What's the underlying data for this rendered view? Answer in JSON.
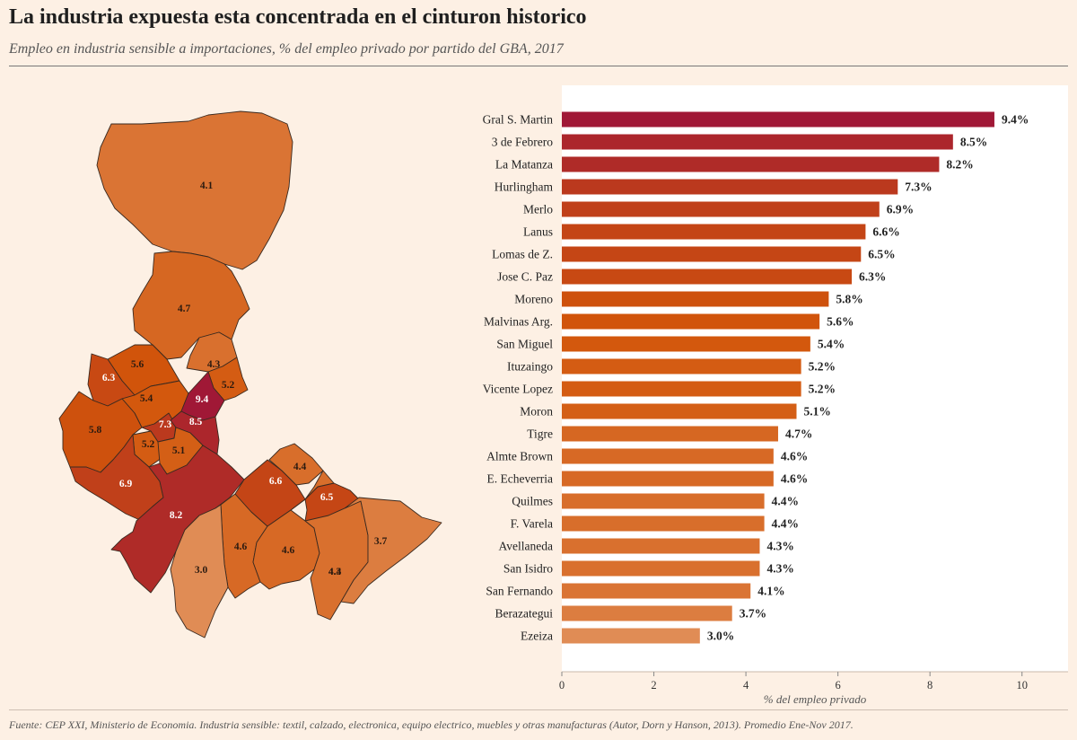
{
  "title": "La industria expuesta esta concentrada en el cinturon historico",
  "subtitle": "Empleo en industria sensible a importaciones, % del empleo privado por partido del GBA, 2017",
  "footer": "Fuente: CEP XXI, Ministerio de Economia. Industria sensible: textil, calzado, electronica, equipo electrico, muebles y otras manufacturas (Autor, Dorn y Hanson, 2013). Promedio Ene-Nov 2017.",
  "colors": {
    "background": "#fdf0e4",
    "plot_background": "#ffffff",
    "scale_low": "#e08c55",
    "scale_mid": "#d2560a",
    "scale_high": "#a01836",
    "border": "#3a2a20"
  },
  "chart_data": [
    {
      "type": "bar",
      "orientation": "horizontal",
      "categories": [
        "Gral S. Martin",
        "3 de Febrero",
        "La Matanza",
        "Hurlingham",
        "Merlo",
        "Lanus",
        "Lomas de Z.",
        "Jose C. Paz",
        "Moreno",
        "Malvinas Arg.",
        "San Miguel",
        "Ituzaingo",
        "Vicente Lopez",
        "Moron",
        "Tigre",
        "Almte Brown",
        "E. Echeverria",
        "Quilmes",
        "F. Varela",
        "Avellaneda",
        "San Isidro",
        "San Fernando",
        "Berazategui",
        "Ezeiza"
      ],
      "values": [
        9.4,
        8.5,
        8.2,
        7.3,
        6.9,
        6.6,
        6.5,
        6.3,
        5.8,
        5.6,
        5.4,
        5.2,
        5.2,
        5.1,
        4.7,
        4.6,
        4.6,
        4.4,
        4.4,
        4.3,
        4.3,
        4.1,
        3.7,
        3.0
      ],
      "value_labels": [
        "9.4%",
        "8.5%",
        "8.2%",
        "7.3%",
        "6.9%",
        "6.6%",
        "6.5%",
        "6.3%",
        "5.8%",
        "5.6%",
        "5.4%",
        "5.2%",
        "5.2%",
        "5.1%",
        "4.7%",
        "4.6%",
        "4.6%",
        "4.4%",
        "4.4%",
        "4.3%",
        "4.3%",
        "4.1%",
        "3.7%",
        "3.0%"
      ],
      "xlabel": "% del empleo privado",
      "xlim": [
        0,
        11
      ],
      "xticks": [
        0,
        2,
        4,
        6,
        8,
        10
      ],
      "grid": false
    },
    {
      "type": "choropleth",
      "region_labels": [
        "4.1",
        "4.7",
        "5.6",
        "6.3",
        "4.3",
        "5.2",
        "5.4",
        "9.4",
        "5.8",
        "7.3",
        "8.5",
        "5.2",
        "5.1",
        "6.9",
        "8.2",
        "4.6",
        "6.6",
        "4.4",
        "6.5",
        "3.0",
        "4.6",
        "4.3",
        "3.7",
        "4.4"
      ]
    }
  ]
}
